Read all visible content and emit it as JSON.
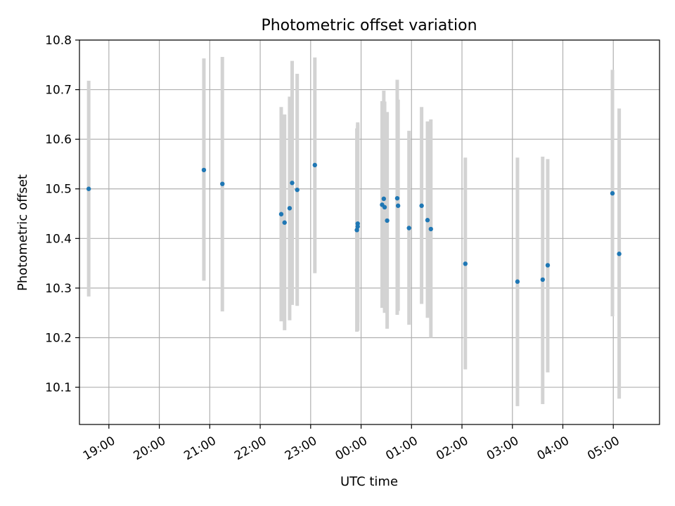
{
  "chart_data": {
    "type": "scatter",
    "title": "Photometric offset variation",
    "xlabel": "UTC time",
    "ylabel": "Photometric offset",
    "x_axis": "time",
    "xlim": [
      "18:25",
      "05:55"
    ],
    "ylim": [
      10.025,
      10.8
    ],
    "x_ticks": [
      "19:00",
      "20:00",
      "21:00",
      "22:00",
      "23:00",
      "00:00",
      "01:00",
      "02:00",
      "03:00",
      "04:00",
      "05:00"
    ],
    "y_ticks": [
      "10.1",
      "10.2",
      "10.3",
      "10.4",
      "10.5",
      "10.6",
      "10.7",
      "10.8"
    ],
    "grid": true,
    "marker_color": "#1f77b4",
    "errorbar_color": "#d3d3d3",
    "points": [
      {
        "t": "18:36",
        "y": 10.5,
        "err_low": 10.283,
        "err_high": 10.718
      },
      {
        "t": "20:53",
        "y": 10.538,
        "err_low": 10.315,
        "err_high": 10.763
      },
      {
        "t": "21:15",
        "y": 10.51,
        "err_low": 10.253,
        "err_high": 10.766
      },
      {
        "t": "22:25",
        "y": 10.449,
        "err_low": 10.233,
        "err_high": 10.665
      },
      {
        "t": "22:29",
        "y": 10.432,
        "err_low": 10.215,
        "err_high": 10.65
      },
      {
        "t": "22:35",
        "y": 10.461,
        "err_low": 10.235,
        "err_high": 10.686
      },
      {
        "t": "22:38",
        "y": 10.512,
        "err_low": 10.266,
        "err_high": 10.758
      },
      {
        "t": "22:44",
        "y": 10.498,
        "err_low": 10.264,
        "err_high": 10.732
      },
      {
        "t": "23:05",
        "y": 10.548,
        "err_low": 10.33,
        "err_high": 10.765
      },
      {
        "t": "23:55",
        "y": 10.417,
        "err_low": 10.212,
        "err_high": 10.622
      },
      {
        "t": "23:56",
        "y": 10.424,
        "err_low": 10.214,
        "err_high": 10.634
      },
      {
        "t": "23:56",
        "y": 10.43,
        "err_low": 10.23,
        "err_high": 10.63
      },
      {
        "t": "00:25",
        "y": 10.468,
        "err_low": 10.26,
        "err_high": 10.677
      },
      {
        "t": "00:27",
        "y": 10.48,
        "err_low": 10.262,
        "err_high": 10.698
      },
      {
        "t": "00:28",
        "y": 10.463,
        "err_low": 10.25,
        "err_high": 10.676
      },
      {
        "t": "00:31",
        "y": 10.436,
        "err_low": 10.218,
        "err_high": 10.655
      },
      {
        "t": "00:43",
        "y": 10.481,
        "err_low": 10.246,
        "err_high": 10.72
      },
      {
        "t": "00:44",
        "y": 10.466,
        "err_low": 10.254,
        "err_high": 10.68
      },
      {
        "t": "00:57",
        "y": 10.421,
        "err_low": 10.226,
        "err_high": 10.617
      },
      {
        "t": "01:12",
        "y": 10.466,
        "err_low": 10.268,
        "err_high": 10.665
      },
      {
        "t": "01:19",
        "y": 10.437,
        "err_low": 10.24,
        "err_high": 10.636
      },
      {
        "t": "01:23",
        "y": 10.419,
        "err_low": 10.2,
        "err_high": 10.64
      },
      {
        "t": "02:04",
        "y": 10.349,
        "err_low": 10.136,
        "err_high": 10.563
      },
      {
        "t": "03:06",
        "y": 10.313,
        "err_low": 10.062,
        "err_high": 10.563
      },
      {
        "t": "03:36",
        "y": 10.317,
        "err_low": 10.066,
        "err_high": 10.565
      },
      {
        "t": "03:42",
        "y": 10.346,
        "err_low": 10.13,
        "err_high": 10.56
      },
      {
        "t": "04:59",
        "y": 10.491,
        "err_low": 10.243,
        "err_high": 10.74
      },
      {
        "t": "05:07",
        "y": 10.369,
        "err_low": 10.077,
        "err_high": 10.662
      }
    ]
  }
}
